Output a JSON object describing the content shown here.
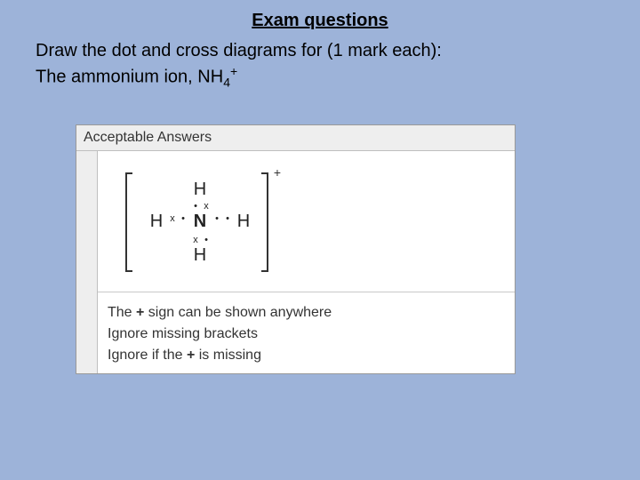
{
  "title": "Exam questions",
  "instruction_line1": "Draw the dot and cross diagrams for (1 mark each):",
  "instruction_line2_prefix": "The ammonium ion, NH",
  "instruction_sub": "4",
  "instruction_sup": "+",
  "header": "Acceptable Answers",
  "diagram": {
    "center": "N",
    "top": "H",
    "bottom": "H",
    "left": "H",
    "right": "H",
    "charge": "+",
    "marks": {
      "t1": "•",
      "t2": "x",
      "l1": "x",
      "l2": "•",
      "r1": "•",
      "r2": "•",
      "b1": "x",
      "b2": "•"
    }
  },
  "notes": {
    "line1_a": "The ",
    "line1_b": "+",
    "line1_c": " sign can be shown anywhere",
    "line2": "Ignore missing brackets",
    "line3_a": "Ignore if the ",
    "line3_b": "+",
    "line3_c": " is missing"
  }
}
